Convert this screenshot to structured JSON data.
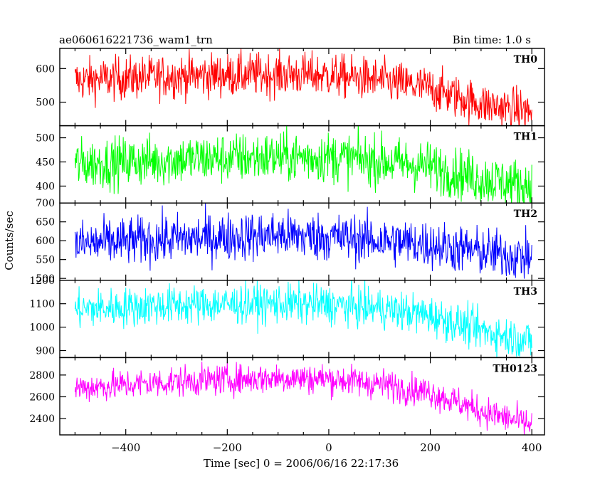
{
  "chart_data": {
    "type": "line",
    "title": "ae060616221736_wam1_trn",
    "subtitle": "Bin time: 1.0 s",
    "xlabel": "Time [sec] 0 = 2006/06/16 22:17:36",
    "ylabel": "Counts/sec",
    "xlim": [
      -530,
      425
    ],
    "xticks": [
      "−400",
      "−200",
      "0",
      "200",
      "400"
    ],
    "xtick_values": [
      -400,
      -200,
      0,
      200,
      400
    ],
    "x_start": -500,
    "x_end": 400,
    "bin": 1.0,
    "panels": [
      {
        "name": "TH0",
        "color": "#ff0000",
        "ylim": [
          430,
          660
        ],
        "yticks": [
          500,
          600
        ],
        "yticklabels": [
          "500",
          "600"
        ],
        "trend_x": [
          -500,
          -300,
          -100,
          0,
          100,
          200,
          300,
          400
        ],
        "trend_y": [
          565,
          578,
          583,
          580,
          565,
          540,
          495,
          470
        ],
        "noise": 32
      },
      {
        "name": "TH1",
        "color": "#00ff00",
        "ylim": [
          365,
          525
        ],
        "yticks": [
          400,
          450,
          500
        ],
        "yticklabels": [
          "400",
          "450",
          "500"
        ],
        "trend_x": [
          -500,
          -300,
          -100,
          0,
          100,
          200,
          300,
          400
        ],
        "trend_y": [
          445,
          455,
          460,
          460,
          452,
          440,
          415,
          400
        ],
        "noise": 26
      },
      {
        "name": "TH2",
        "color": "#0000ff",
        "ylim": [
          495,
          700
        ],
        "yticks": [
          500,
          550,
          600,
          650,
          700
        ],
        "yticklabels": [
          "500",
          "550",
          "600",
          "650",
          "700"
        ],
        "trend_x": [
          -500,
          -300,
          -100,
          0,
          100,
          200,
          300,
          400
        ],
        "trend_y": [
          590,
          605,
          615,
          610,
          600,
          590,
          570,
          555
        ],
        "noise": 32
      },
      {
        "name": "TH3",
        "color": "#00ffff",
        "ylim": [
          870,
          1200
        ],
        "yticks": [
          900,
          1000,
          1100,
          1200
        ],
        "yticklabels": [
          "900",
          "1000",
          "1100",
          "1200"
        ],
        "trend_x": [
          -500,
          -300,
          -100,
          0,
          100,
          200,
          300,
          400
        ],
        "trend_y": [
          1075,
          1095,
          1100,
          1095,
          1080,
          1050,
          985,
          940
        ],
        "noise": 42
      },
      {
        "name": "TH0123",
        "color": "#ff00ff",
        "ylim": [
          2250,
          2960
        ],
        "yticks": [
          2400,
          2600,
          2800
        ],
        "yticklabels": [
          "2400",
          "2600",
          "2800"
        ],
        "trend_x": [
          -500,
          -300,
          -100,
          0,
          100,
          200,
          300,
          400
        ],
        "trend_y": [
          2680,
          2740,
          2775,
          2765,
          2720,
          2640,
          2470,
          2340
        ],
        "noise": 70
      }
    ]
  }
}
